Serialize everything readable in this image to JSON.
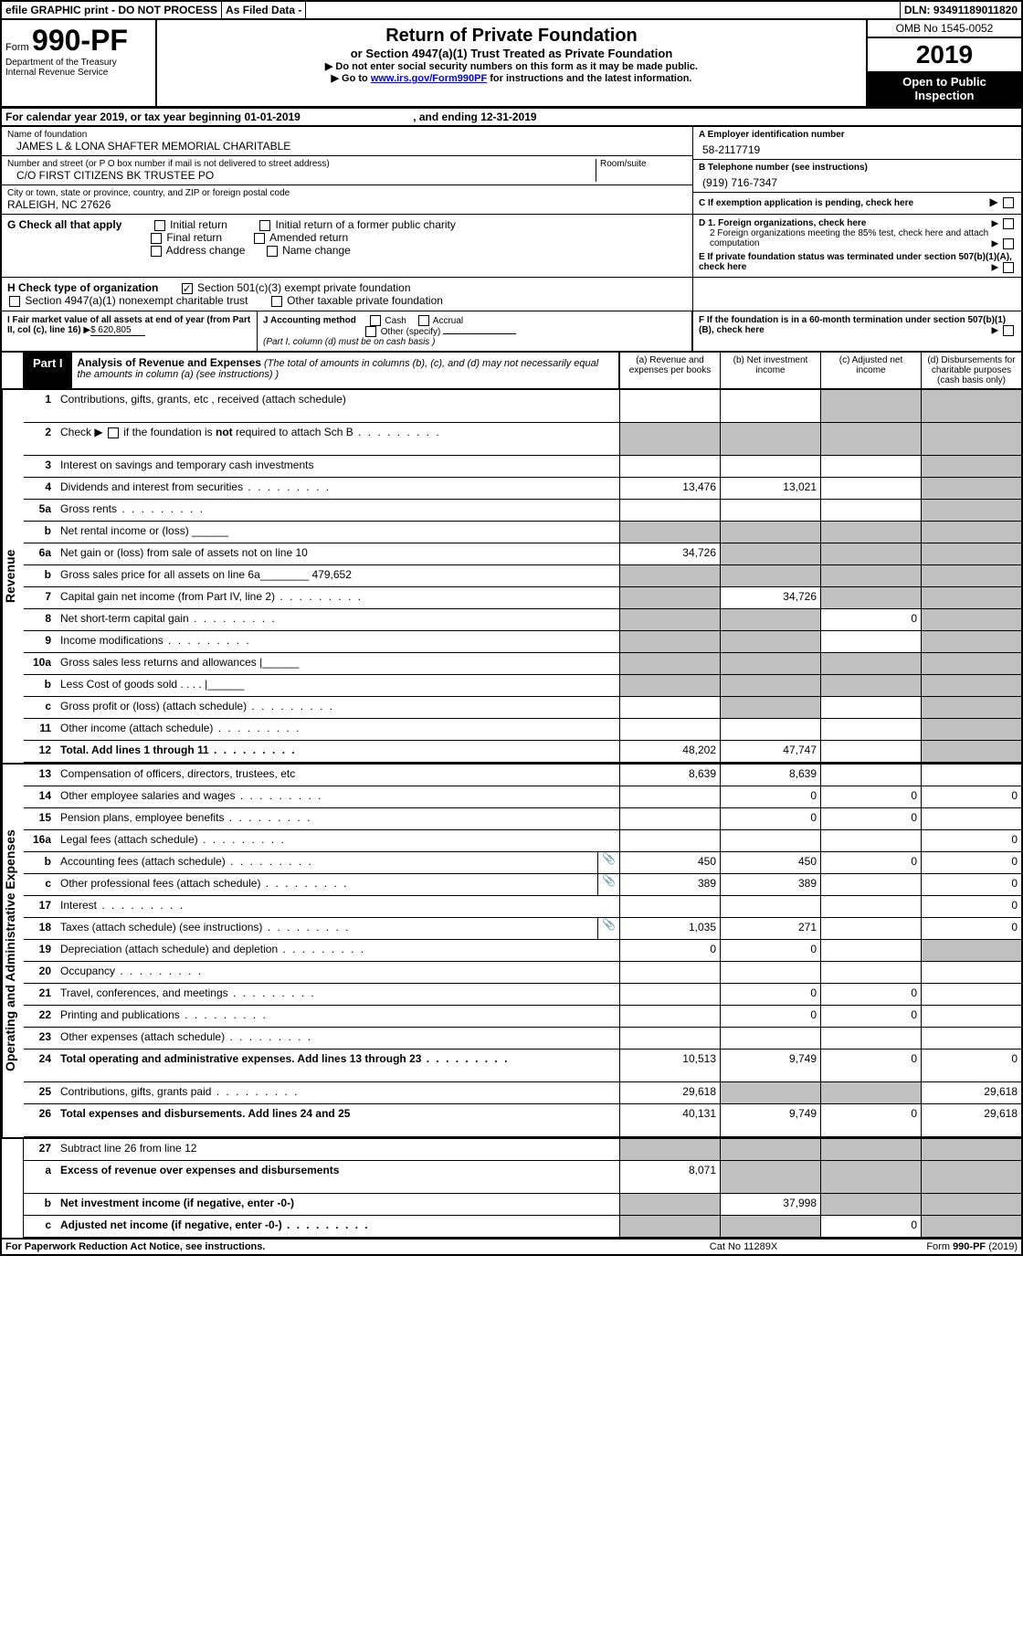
{
  "header": {
    "efile": "efile GRAPHIC print - DO NOT PROCESS",
    "asfiled": "As Filed Data -",
    "dln_label": "DLN:",
    "dln": "93491189011820",
    "form_prefix": "Form",
    "form_num": "990-PF",
    "dept": "Department of the Treasury",
    "irs": "Internal Revenue Service",
    "title": "Return of Private Foundation",
    "subtitle": "or Section 4947(a)(1) Trust Treated as Private Foundation",
    "instr1": "▶ Do not enter social security numbers on this form as it may be made public.",
    "instr2_pre": "▶ Go to ",
    "instr2_link": "www.irs.gov/Form990PF",
    "instr2_post": " for instructions and the latest information.",
    "omb": "OMB No 1545-0052",
    "year": "2019",
    "open": "Open to Public Inspection"
  },
  "cal_year": {
    "pre": "For calendar year 2019, or tax year beginning ",
    "begin": "01-01-2019",
    "mid": " , and ending ",
    "end": "12-31-2019"
  },
  "name_block": {
    "name_label": "Name of foundation",
    "name": "JAMES L & LONA SHAFTER MEMORIAL CHARITABLE",
    "addr_label": "Number and street (or P O  box number if mail is not delivered to street address)",
    "room_label": "Room/suite",
    "addr": "C/O FIRST CITIZENS BK TRUSTEE PO",
    "city_label": "City or town, state or province, country, and ZIP or foreign postal code",
    "city": "RALEIGH, NC  27626",
    "a_label": "A Employer identification number",
    "a_val": "58-2117719",
    "b_label": "B Telephone number (see instructions)",
    "b_val": "(919) 716-7347",
    "c_label": "C If exemption application is pending, check here"
  },
  "g_block": {
    "g": "G Check all that apply",
    "g1": "Initial return",
    "g2": "Initial return of a former public charity",
    "g3": "Final return",
    "g4": "Amended return",
    "g5": "Address change",
    "g6": "Name change",
    "d1": "D 1. Foreign organizations, check here",
    "d2": "2  Foreign organizations meeting the 85% test, check here and attach computation",
    "e": "E  If private foundation status was terminated under section 507(b)(1)(A), check here"
  },
  "h_block": {
    "h": "H Check type of organization",
    "h1": "Section 501(c)(3) exempt private foundation",
    "h2": "Section 4947(a)(1) nonexempt charitable trust",
    "h3": "Other taxable private foundation"
  },
  "ij_block": {
    "i_label": "I Fair market value of all assets at end of year (from Part II, col  (c), line 16) ",
    "i_val": "$  620,805",
    "j_label": "J Accounting method",
    "j1": "Cash",
    "j2": "Accrual",
    "j3": "Other (specify)",
    "j_note": "(Part I, column (d) must be on cash basis )",
    "f_label": "F  If the foundation is in a 60-month termination under section 507(b)(1)(B), check here"
  },
  "part1": {
    "label": "Part I",
    "title": "Analysis of Revenue and Expenses",
    "note": " (The total of amounts in columns (b), (c), and (d) may not necessarily equal the amounts in column (a) (see instructions) )",
    "col_a": "(a)   Revenue and expenses per books",
    "col_b": "(b)  Net investment income",
    "col_c": "(c)  Adjusted net income",
    "col_d": "(d)  Disbursements for charitable purposes (cash basis only)",
    "vert_rev": "Revenue",
    "vert_exp": "Operating and Administrative Expenses",
    "rows": [
      {
        "n": "1",
        "d": "Contributions, gifts, grants, etc , received (attach schedule)",
        "a": "",
        "b": "",
        "c": "gray",
        "dcol": "gray",
        "tall": true
      },
      {
        "n": "2",
        "d": "Check ▶ ☐ if the foundation is not required to attach Sch  B",
        "a": "gray",
        "b": "gray",
        "c": "gray",
        "dcol": "gray",
        "tall": true,
        "dotted": true,
        "html": true
      },
      {
        "n": "3",
        "d": "Interest on savings and temporary cash investments",
        "a": "",
        "b": "",
        "c": "",
        "dcol": "gray"
      },
      {
        "n": "4",
        "d": "Dividends and interest from securities",
        "a": "13,476",
        "b": "13,021",
        "c": "",
        "dcol": "gray",
        "dotted": true
      },
      {
        "n": "5a",
        "d": "Gross rents",
        "a": "",
        "b": "",
        "c": "",
        "dcol": "gray",
        "dotted": true
      },
      {
        "n": "b",
        "d": "Net rental income or (loss)   ______",
        "a": "gray",
        "b": "gray",
        "c": "gray",
        "dcol": "gray"
      },
      {
        "n": "6a",
        "d": "Net gain or (loss) from sale of assets not on line 10",
        "a": "34,726",
        "b": "gray",
        "c": "gray",
        "dcol": "gray"
      },
      {
        "n": "b",
        "d": "Gross sales price for all assets on line 6a________ 479,652",
        "a": "gray",
        "b": "gray",
        "c": "gray",
        "dcol": "gray"
      },
      {
        "n": "7",
        "d": "Capital gain net income (from Part IV, line 2)",
        "a": "gray",
        "b": "34,726",
        "c": "gray",
        "dcol": "gray",
        "dotted": true
      },
      {
        "n": "8",
        "d": "Net short-term capital gain",
        "a": "gray",
        "b": "gray",
        "c": "0",
        "dcol": "gray",
        "dotted": true
      },
      {
        "n": "9",
        "d": "Income modifications",
        "a": "gray",
        "b": "gray",
        "c": "",
        "dcol": "gray",
        "dotted": true
      },
      {
        "n": "10a",
        "d": "Gross sales less returns and allowances |______",
        "a": "gray",
        "b": "gray",
        "c": "gray",
        "dcol": "gray"
      },
      {
        "n": "b",
        "d": "Less  Cost of goods sold     .  .  .  .  |______",
        "a": "gray",
        "b": "gray",
        "c": "gray",
        "dcol": "gray"
      },
      {
        "n": "c",
        "d": "Gross profit or (loss) (attach schedule)",
        "a": "",
        "b": "gray",
        "c": "",
        "dcol": "gray",
        "dotted": true
      },
      {
        "n": "11",
        "d": "Other income (attach schedule)",
        "a": "",
        "b": "",
        "c": "",
        "dcol": "gray",
        "dotted": true
      },
      {
        "n": "12",
        "d": "Total. Add lines 1 through 11",
        "a": "48,202",
        "b": "47,747",
        "c": "",
        "dcol": "gray",
        "bold": true,
        "dotted": true
      }
    ],
    "exp_rows": [
      {
        "n": "13",
        "d": "Compensation of officers, directors, trustees, etc",
        "a": "8,639",
        "b": "8,639",
        "c": "",
        "dcol": ""
      },
      {
        "n": "14",
        "d": "Other employee salaries and wages",
        "a": "",
        "b": "0",
        "c": "0",
        "dcol": "0",
        "dotted": true
      },
      {
        "n": "15",
        "d": "Pension plans, employee benefits",
        "a": "",
        "b": "0",
        "c": "0",
        "dcol": "",
        "dotted": true
      },
      {
        "n": "16a",
        "d": "Legal fees (attach schedule)",
        "a": "",
        "b": "",
        "c": "",
        "dcol": "0",
        "dotted": true
      },
      {
        "n": "b",
        "d": "Accounting fees (attach schedule)",
        "a": "450",
        "b": "450",
        "c": "0",
        "dcol": "0",
        "icon": true,
        "dotted": true
      },
      {
        "n": "c",
        "d": "Other professional fees (attach schedule)",
        "a": "389",
        "b": "389",
        "c": "",
        "dcol": "0",
        "icon": true,
        "dotted": true
      },
      {
        "n": "17",
        "d": "Interest",
        "a": "",
        "b": "",
        "c": "",
        "dcol": "0",
        "dotted": true
      },
      {
        "n": "18",
        "d": "Taxes (attach schedule) (see instructions)",
        "a": "1,035",
        "b": "271",
        "c": "",
        "dcol": "0",
        "icon": true,
        "dotted": true
      },
      {
        "n": "19",
        "d": "Depreciation (attach schedule) and depletion",
        "a": "0",
        "b": "0",
        "c": "",
        "dcol": "gray",
        "dotted": true
      },
      {
        "n": "20",
        "d": "Occupancy",
        "a": "",
        "b": "",
        "c": "",
        "dcol": "",
        "dotted": true
      },
      {
        "n": "21",
        "d": "Travel, conferences, and meetings",
        "a": "",
        "b": "0",
        "c": "0",
        "dcol": "",
        "dotted": true
      },
      {
        "n": "22",
        "d": "Printing and publications",
        "a": "",
        "b": "0",
        "c": "0",
        "dcol": "",
        "dotted": true
      },
      {
        "n": "23",
        "d": "Other expenses (attach schedule)",
        "a": "",
        "b": "",
        "c": "",
        "dcol": "",
        "dotted": true
      },
      {
        "n": "24",
        "d": "Total operating and administrative expenses. Add lines 13 through 23",
        "a": "10,513",
        "b": "9,749",
        "c": "0",
        "dcol": "0",
        "bold": true,
        "dotted": true,
        "tall": true
      },
      {
        "n": "25",
        "d": "Contributions, gifts, grants paid",
        "a": "29,618",
        "b": "gray",
        "c": "gray",
        "dcol": "29,618",
        "dotted": true
      },
      {
        "n": "26",
        "d": "Total expenses and disbursements. Add lines 24 and 25",
        "a": "40,131",
        "b": "9,749",
        "c": "0",
        "dcol": "29,618",
        "bold": true,
        "tall": true
      }
    ],
    "net_rows": [
      {
        "n": "27",
        "d": "Subtract line 26 from line 12",
        "a": "gray",
        "b": "gray",
        "c": "gray",
        "dcol": "gray"
      },
      {
        "n": "a",
        "d": "Excess of revenue over expenses and disbursements",
        "a": "8,071",
        "b": "gray",
        "c": "gray",
        "dcol": "gray",
        "bold": true,
        "tall": true
      },
      {
        "n": "b",
        "d": "Net investment income (if negative, enter -0-)",
        "a": "gray",
        "b": "37,998",
        "c": "gray",
        "dcol": "gray",
        "bold": true
      },
      {
        "n": "c",
        "d": "Adjusted net income (if negative, enter -0-)",
        "a": "gray",
        "b": "gray",
        "c": "0",
        "dcol": "gray",
        "bold": true,
        "dotted": true
      }
    ]
  },
  "footer": {
    "left": "For Paperwork Reduction Act Notice, see instructions.",
    "mid": "Cat  No  11289X",
    "right": "Form 990-PF (2019)"
  }
}
